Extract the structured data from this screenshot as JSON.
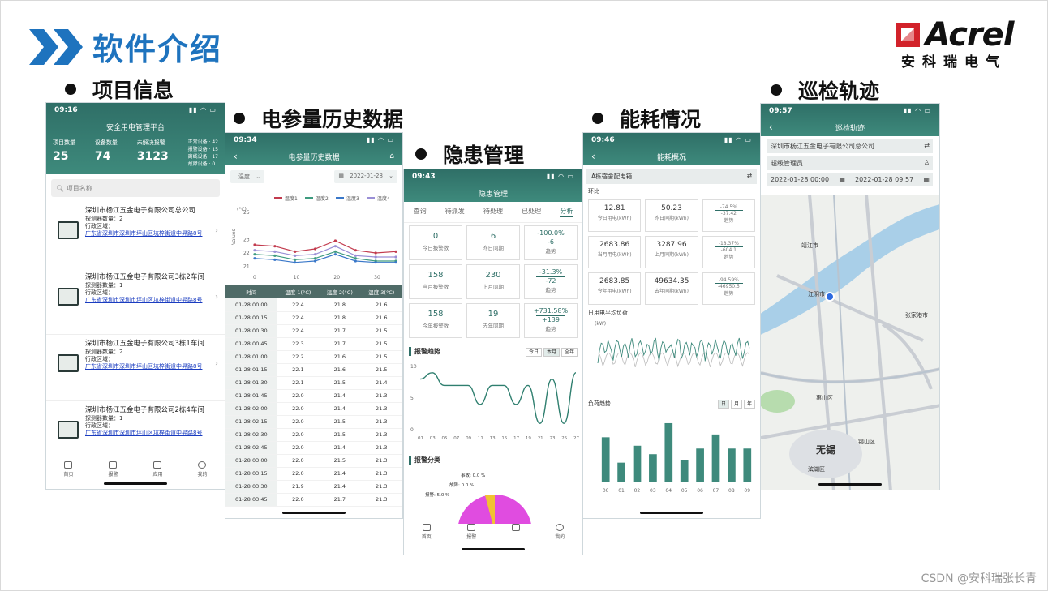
{
  "slide_title": "软件介绍",
  "logo": {
    "brand": "Acrel",
    "sub": "安科瑞电气"
  },
  "bullets": {
    "p1": "项目信息",
    "p2": "电参量历史数据",
    "p3": "隐患管理",
    "p4": "能耗情况",
    "p5": "巡检轨迹"
  },
  "watermark": "CSDN @安科瑞张长青",
  "phone1": {
    "time": "09:16",
    "title": "安全用电管理平台",
    "stats": [
      {
        "label": "项目数量",
        "value": "25"
      },
      {
        "label": "设备数量",
        "value": "74"
      },
      {
        "label": "未解决报警",
        "value": "3123"
      }
    ],
    "legend": [
      "正常设备 · 42",
      "报警设备 · 15",
      "离线设备 · 17",
      "故障设备 · 0"
    ],
    "search_placeholder": "项目名称",
    "projects": [
      {
        "name": "深圳市杨江五金电子有限公司总公司",
        "count": "探测器数量：2",
        "region": "行政区域：",
        "addr": "广东省深圳市深圳市坪山区坑梓街道中昇路8号"
      },
      {
        "name": "深圳市杨江五金电子有限公司3栋2车间",
        "count": "探测器数量：1",
        "region": "行政区域：",
        "addr": "广东省深圳市深圳市坪山区坑梓街道中昇路8号"
      },
      {
        "name": "深圳市杨江五金电子有限公司3栋1车间",
        "count": "探测器数量：2",
        "region": "行政区域：",
        "addr": "广东省深圳市深圳市坪山区坑梓街道中昇路8号"
      },
      {
        "name": "深圳市杨江五金电子有限公司2栋4车间",
        "count": "探测器数量：1",
        "region": "行政区域：",
        "addr": "广东省深圳市深圳市坪山区坑梓街道中昇路8号"
      }
    ],
    "tabs": [
      "首页",
      "报警",
      "应用",
      "我的"
    ]
  },
  "phone2": {
    "time": "09:34",
    "title": "电参量历史数据",
    "select": "温度",
    "date": "2022-01-28",
    "legend": [
      "温度1",
      "温度2",
      "温度3",
      "温度4"
    ],
    "unit": "(°C)",
    "ylabel": "Values",
    "yticks": [
      "25",
      "23",
      "22",
      "21"
    ],
    "xticks": [
      "0",
      "10",
      "20",
      "30"
    ],
    "headers": [
      "时间",
      "温度 1(°C)",
      "温度 2(°C)",
      "温度 3(°C)"
    ],
    "rows": [
      [
        "01-28 00:00",
        "22.4",
        "21.8",
        "21.6"
      ],
      [
        "01-28 00:15",
        "22.4",
        "21.8",
        "21.6"
      ],
      [
        "01-28 00:30",
        "22.4",
        "21.7",
        "21.5"
      ],
      [
        "01-28 00:45",
        "22.3",
        "21.7",
        "21.5"
      ],
      [
        "01-28 01:00",
        "22.2",
        "21.6",
        "21.5"
      ],
      [
        "01-28 01:15",
        "22.1",
        "21.6",
        "21.5"
      ],
      [
        "01-28 01:30",
        "22.1",
        "21.5",
        "21.4"
      ],
      [
        "01-28 01:45",
        "22.0",
        "21.4",
        "21.3"
      ],
      [
        "01-28 02:00",
        "22.0",
        "21.4",
        "21.3"
      ],
      [
        "01-28 02:15",
        "22.0",
        "21.5",
        "21.3"
      ],
      [
        "01-28 02:30",
        "22.0",
        "21.5",
        "21.3"
      ],
      [
        "01-28 02:45",
        "22.0",
        "21.4",
        "21.3"
      ],
      [
        "01-28 03:00",
        "22.0",
        "21.5",
        "21.3"
      ],
      [
        "01-28 03:15",
        "22.0",
        "21.4",
        "21.3"
      ],
      [
        "01-28 03:30",
        "21.9",
        "21.4",
        "21.3"
      ],
      [
        "01-28 03:45",
        "22.0",
        "21.7",
        "21.3"
      ]
    ]
  },
  "phone3": {
    "time": "09:43",
    "title": "隐患管理",
    "tabs": [
      "查询",
      "待派发",
      "待处理",
      "已处理",
      "分析"
    ],
    "cells": [
      {
        "v": "0",
        "l": "今日报警数"
      },
      {
        "v": "6",
        "l": "昨日同期"
      },
      {
        "r1": "-100.0%",
        "r2": "-6",
        "l": "趋势"
      },
      {
        "v": "158",
        "l": "当月报警数"
      },
      {
        "v": "230",
        "l": "上月同期"
      },
      {
        "r1": "-31.3%",
        "r2": "-72",
        "l": "趋势"
      },
      {
        "v": "158",
        "l": "今年报警数"
      },
      {
        "v": "19",
        "l": "去年同期"
      },
      {
        "r1": "+731.58%",
        "r2": "+139",
        "l": "趋势"
      }
    ],
    "trend_title": "报警趋势",
    "btns": [
      "今日",
      "本月",
      "全年"
    ],
    "yticks": [
      "10",
      "5",
      "0"
    ],
    "xticks": [
      "01",
      "03",
      "05",
      "07",
      "09",
      "11",
      "13",
      "15",
      "17",
      "19",
      "21",
      "23",
      "25",
      "27"
    ],
    "cat_title": "报警分类",
    "pie_labels": [
      "事故: 0.0 %",
      "故障: 0.0 %",
      "报警: 5.0 %"
    ],
    "tabbar": [
      "首页",
      "报警",
      "",
      "我的"
    ]
  },
  "phone4": {
    "time": "09:46",
    "title": "能耗概况",
    "select": "A栋宿舍配电箱",
    "huanbi": "环比",
    "cells": [
      {
        "v": "12.81",
        "l": "今日用电(kWh)"
      },
      {
        "v": "50.23",
        "l": "昨日同期(kWh)"
      },
      {
        "r1": "-74.5%",
        "r2": "-37.42",
        "l": "趋势"
      },
      {
        "v": "2683.86",
        "l": "当月用电(kWh)"
      },
      {
        "v": "3287.96",
        "l": "上月同期(kWh)"
      },
      {
        "r1": "-18.37%",
        "r2": "-604.1",
        "l": "趋势"
      },
      {
        "v": "2683.85",
        "l": "今年用电(kWh)"
      },
      {
        "v": "49634.35",
        "l": "去年同期(kWh)"
      },
      {
        "r1": "-94.59%",
        "r2": "-46950.5",
        "l": "趋势"
      }
    ],
    "avg_title": "日用电平均负荷",
    "unit": "(kW)",
    "load_title": "负荷趋势",
    "btns": [
      "日",
      "月",
      "年"
    ],
    "bar_x": [
      "00",
      "01",
      "02",
      "03",
      "04",
      "05",
      "06",
      "07",
      "08",
      "09"
    ]
  },
  "phone5": {
    "time": "09:57",
    "title": "巡检轨迹",
    "company": "深圳市杨江五金电子有限公司总公司",
    "user": "超级管理员",
    "from": "2022-01-28 00:00",
    "to": "2022-01-28 09:57",
    "places": [
      "靖江市",
      "江阴市",
      "张家港市",
      "无锡",
      "锡山区",
      "滨湖区",
      "惠山区"
    ]
  },
  "chart_data": [
    {
      "type": "line",
      "title": "",
      "x": [
        0,
        5,
        10,
        15,
        20,
        25,
        30,
        35
      ],
      "series": [
        {
          "name": "温度1",
          "values": [
            22.6,
            22.5,
            22.1,
            22.3,
            22.9,
            22.2,
            22.0,
            22.1
          ]
        },
        {
          "name": "温度2",
          "values": [
            21.9,
            21.8,
            21.5,
            21.6,
            22.1,
            21.6,
            21.4,
            21.4
          ]
        },
        {
          "name": "温度3",
          "values": [
            21.6,
            21.5,
            21.3,
            21.4,
            21.9,
            21.4,
            21.3,
            21.3
          ]
        },
        {
          "name": "温度4",
          "values": [
            22.2,
            22.1,
            21.8,
            21.9,
            22.5,
            21.8,
            21.7,
            21.7
          ]
        }
      ],
      "ylabel": "Values",
      "ylim": [
        20.8,
        25
      ]
    },
    {
      "type": "line",
      "title": "报警趋势",
      "categories": [
        "01",
        "03",
        "05",
        "07",
        "09",
        "11",
        "13",
        "15",
        "17",
        "19",
        "21",
        "23",
        "25",
        "27"
      ],
      "series": [
        {
          "values": [
            8,
            9,
            7,
            7,
            7,
            4,
            7,
            7,
            4,
            7,
            1,
            8,
            1,
            9
          ]
        }
      ],
      "ylim": [
        0,
        10
      ]
    },
    {
      "type": "pie",
      "title": "报警分类",
      "categories": [
        "事故",
        "故障",
        "报警"
      ],
      "values": [
        0.0,
        0.0,
        5.0
      ]
    },
    {
      "type": "bar",
      "title": "负荷趋势",
      "categories": [
        "00",
        "01",
        "02",
        "03",
        "04",
        "05",
        "06",
        "07",
        "08",
        "09"
      ],
      "values": [
        1.6,
        0.7,
        1.3,
        1.0,
        2.1,
        0.8,
        1.2,
        1.7,
        1.2,
        1.2
      ]
    }
  ]
}
